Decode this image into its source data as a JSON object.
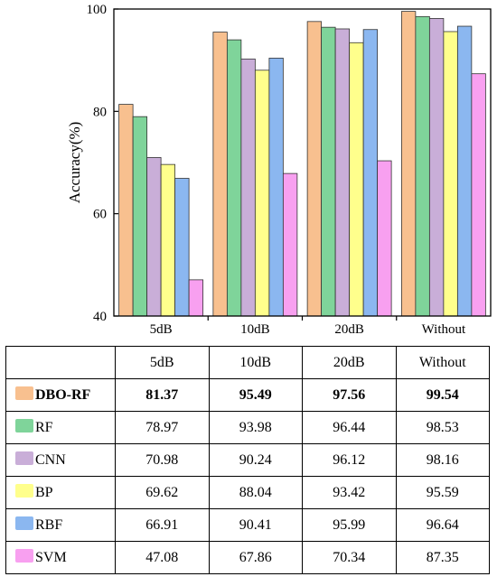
{
  "chart_data": {
    "type": "bar",
    "categories": [
      "5dB",
      "10dB",
      "20dB",
      "Without"
    ],
    "series": [
      {
        "name": "DBO-RF",
        "values": [
          81.37,
          95.49,
          97.56,
          99.54
        ],
        "color": "#f8c08f"
      },
      {
        "name": "RF",
        "values": [
          78.97,
          93.98,
          96.44,
          98.53
        ],
        "color": "#7fd49a"
      },
      {
        "name": "CNN",
        "values": [
          70.98,
          90.24,
          96.12,
          98.16
        ],
        "color": "#c9aed8"
      },
      {
        "name": "BP",
        "values": [
          69.62,
          88.04,
          93.42,
          95.59
        ],
        "color": "#ffff8c"
      },
      {
        "name": "RBF",
        "values": [
          66.91,
          90.41,
          95.99,
          96.64
        ],
        "color": "#8bb7f0"
      },
      {
        "name": "SVM",
        "values": [
          47.08,
          67.86,
          70.34,
          87.35
        ],
        "color": "#f8a0f0"
      }
    ],
    "ylabel": "Accuracy(%)",
    "ylim": [
      40,
      100
    ],
    "yticks": [
      "40",
      "60",
      "80",
      "100"
    ],
    "grid": false,
    "legend": "none"
  },
  "table": {
    "header": [
      "",
      "5dB",
      "10dB",
      "20dB",
      "Without"
    ],
    "rows": [
      {
        "label": "DBO-RF",
        "color": "#f8c08f",
        "bold": true,
        "values": [
          "81.37",
          "95.49",
          "97.56",
          "99.54"
        ]
      },
      {
        "label": "RF",
        "color": "#7fd49a",
        "bold": false,
        "values": [
          "78.97",
          "93.98",
          "96.44",
          "98.53"
        ]
      },
      {
        "label": "CNN",
        "color": "#c9aed8",
        "bold": false,
        "values": [
          "70.98",
          "90.24",
          "96.12",
          "98.16"
        ]
      },
      {
        "label": "BP",
        "color": "#ffff8c",
        "bold": false,
        "values": [
          "69.62",
          "88.04",
          "93.42",
          "95.59"
        ]
      },
      {
        "label": "RBF",
        "color": "#8bb7f0",
        "bold": false,
        "values": [
          "66.91",
          "90.41",
          "95.99",
          "96.64"
        ]
      },
      {
        "label": "SVM",
        "color": "#f8a0f0",
        "bold": false,
        "values": [
          "47.08",
          "67.86",
          "70.34",
          "87.35"
        ]
      }
    ]
  }
}
